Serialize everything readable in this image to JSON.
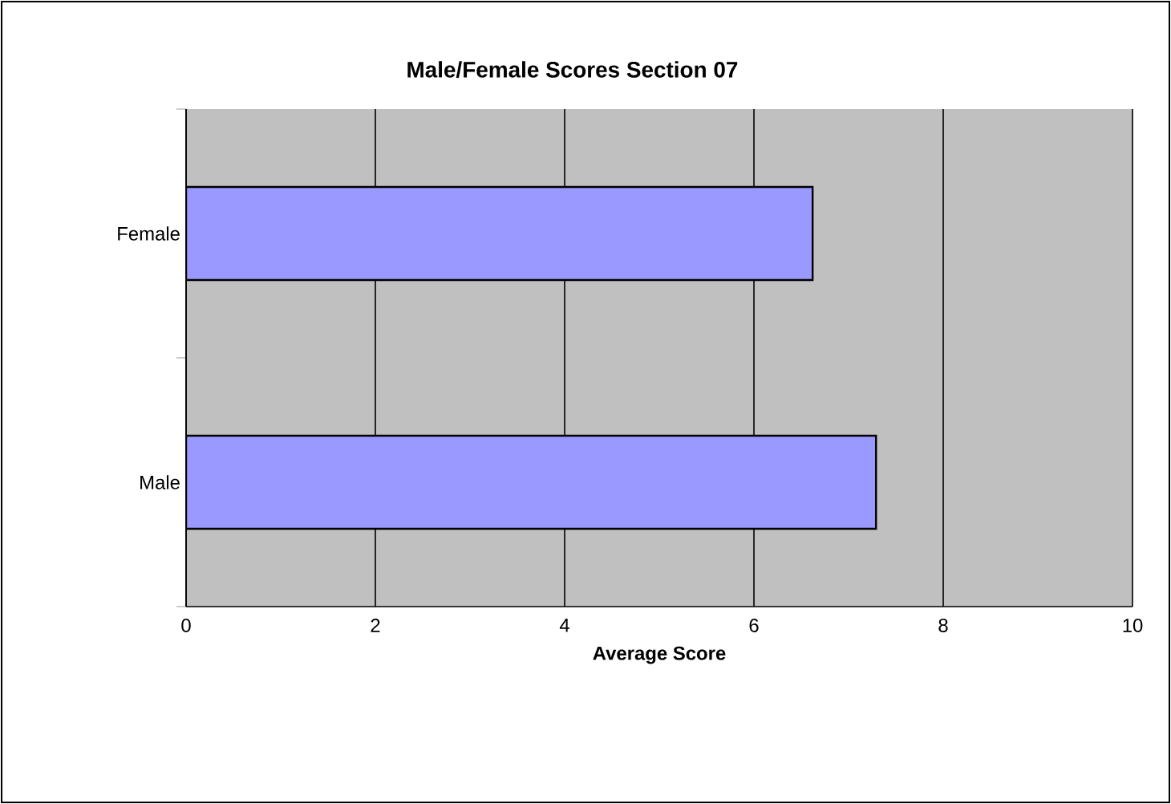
{
  "chart_data": {
    "type": "bar",
    "orientation": "horizontal",
    "title": "Male/Female Scores Section 07",
    "xlabel": "Average Score",
    "categories": [
      "Female",
      "Male"
    ],
    "values": [
      6.62,
      7.29
    ],
    "color": "#9999ff",
    "xlim": [
      0,
      10
    ],
    "xticks": [
      0,
      2,
      4,
      6,
      8,
      10
    ],
    "grid": "x"
  }
}
